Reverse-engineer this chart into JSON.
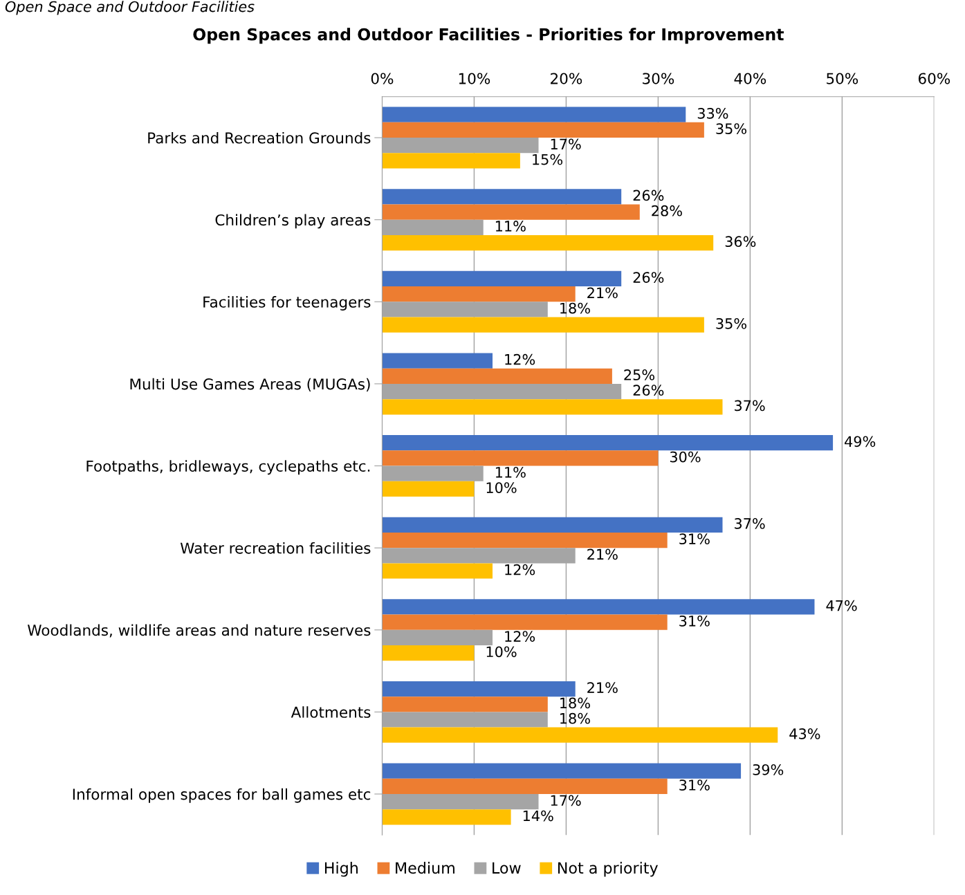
{
  "chart_data": {
    "type": "bar",
    "orientation": "horizontal",
    "title": "Open Spaces and Outdoor Facilities - Priorities for Improvement",
    "annotations": [
      "Open Space and Outdoor Facilities"
    ],
    "categories": [
      "Parks and Recreation Grounds",
      "Children’s play areas",
      "Facilities for teenagers",
      "Multi Use Games Areas (MUGAs)",
      "Footpaths, bridleways, cyclepaths etc.",
      "Water recreation facilities",
      "Woodlands, wildlife areas and nature reserves",
      "Allotments",
      "Informal open spaces for ball games etc"
    ],
    "series": [
      {
        "name": "High",
        "color": "#4472c4",
        "values": [
          33,
          26,
          26,
          12,
          49,
          37,
          47,
          21,
          39
        ],
        "value_labels": [
          "33%",
          "26%",
          "26%",
          "12%",
          "49%",
          "37%",
          "47%",
          "21%",
          "39%"
        ]
      },
      {
        "name": "Medium",
        "color": "#ed7d31",
        "values": [
          35,
          28,
          21,
          25,
          30,
          31,
          31,
          18,
          31
        ],
        "value_labels": [
          "35%",
          "28%",
          "21%",
          "25%",
          "30%",
          "31%",
          "31%",
          "18%",
          "31%"
        ]
      },
      {
        "name": "Low",
        "color": "#a5a5a5",
        "values": [
          17,
          11,
          18,
          26,
          11,
          21,
          12,
          18,
          17
        ],
        "value_labels": [
          "17%",
          "11%",
          "18%",
          "26%",
          "11%",
          "21%",
          "12%",
          "18%",
          "17%"
        ]
      },
      {
        "name": "Not a priority",
        "color": "#ffc000",
        "values": [
          15,
          36,
          35,
          37,
          10,
          12,
          10,
          43,
          14
        ],
        "value_labels": [
          "15%",
          "36%",
          "35%",
          "37%",
          "10%",
          "12%",
          "10%",
          "43%",
          "14%"
        ]
      }
    ],
    "xlim": [
      0,
      60
    ],
    "xticks": [
      {
        "value": 0,
        "label": "0%"
      },
      {
        "value": 10,
        "label": "10%"
      },
      {
        "value": 20,
        "label": "20%"
      },
      {
        "value": 30,
        "label": "30%"
      },
      {
        "value": 40,
        "label": "40%"
      },
      {
        "value": 50,
        "label": "50%"
      },
      {
        "value": 60,
        "label": "60%"
      }
    ],
    "grid": "x",
    "legend": "bottom"
  }
}
